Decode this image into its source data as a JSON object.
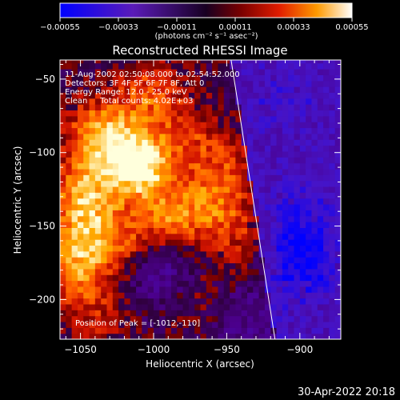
{
  "chart_data": {
    "type": "heatmap",
    "title": "Reconstructed RHESSI Image",
    "xlabel": "Heliocentric X (arcsec)",
    "ylabel": "Heliocentric Y (arcsec)",
    "xlim": [
      -1064,
      -872
    ],
    "ylim": [
      -227,
      -37
    ],
    "x_ticks": [
      -1050,
      -1000,
      -950,
      -900
    ],
    "x_tick_labels": [
      "−1050",
      "−1000",
      "−950",
      "−900"
    ],
    "y_ticks": [
      -50,
      -100,
      -150,
      -200
    ],
    "y_tick_labels": [
      "−50",
      "−100",
      "−150",
      "−200"
    ],
    "colorbar": {
      "range": [
        -0.00055,
        0.00055
      ],
      "tick_labels": [
        "−0.00055",
        "−0.00033",
        "−0.00011",
        "0.00011",
        "0.00033",
        "0.00055"
      ],
      "unit_label": "(photons cm⁻² s⁻¹ asec⁻²)"
    },
    "annotations": [
      "11-Aug-2002 02:50:08.000 to 02:54:52.000",
      "Detectors: 3F 4F 5F 6F 7F 8F, Att 0",
      "Energy Range: 12.0 - 25.0 keV",
      "Clean     Total counts: 4.02E+03"
    ],
    "peak_label": "Position of Peak = [-1012,-110]",
    "peak": [
      -1012,
      -110
    ],
    "limb_line": [
      [
        -947,
        -37
      ],
      [
        -917,
        -227
      ]
    ],
    "hotspots": [
      {
        "x": -1010,
        "y": -108,
        "level": 1.0
      },
      {
        "x": -1035,
        "y": -88,
        "level": 0.75
      },
      {
        "x": -1048,
        "y": -125,
        "level": 0.6
      },
      {
        "x": -1045,
        "y": -152,
        "level": 0.5
      },
      {
        "x": -1055,
        "y": -178,
        "level": 0.55
      },
      {
        "x": -1002,
        "y": -60,
        "level": 0.45
      },
      {
        "x": -990,
        "y": -145,
        "level": 0.55
      },
      {
        "x": -1020,
        "y": -165,
        "level": 0.35
      },
      {
        "x": -960,
        "y": -135,
        "level": 0.4
      },
      {
        "x": -940,
        "y": -155,
        "level": 0.3
      },
      {
        "x": -975,
        "y": -90,
        "level": 0.3
      },
      {
        "x": -975,
        "y": -195,
        "level": 0.2
      },
      {
        "x": -1040,
        "y": -210,
        "level": 0.25
      },
      {
        "x": -950,
        "y": -110,
        "level": 0.28
      }
    ],
    "cold_regions": [
      {
        "x": -895,
        "y": -175,
        "level": 0.65
      },
      {
        "x": -910,
        "y": -65,
        "level": 0.3
      },
      {
        "x": -995,
        "y": -180,
        "level": 0.5
      },
      {
        "x": -905,
        "y": -140,
        "level": 0.45
      },
      {
        "x": -935,
        "y": -215,
        "level": 0.3
      }
    ]
  },
  "footer": {
    "timestamp": "30-Apr-2022 20:18"
  }
}
